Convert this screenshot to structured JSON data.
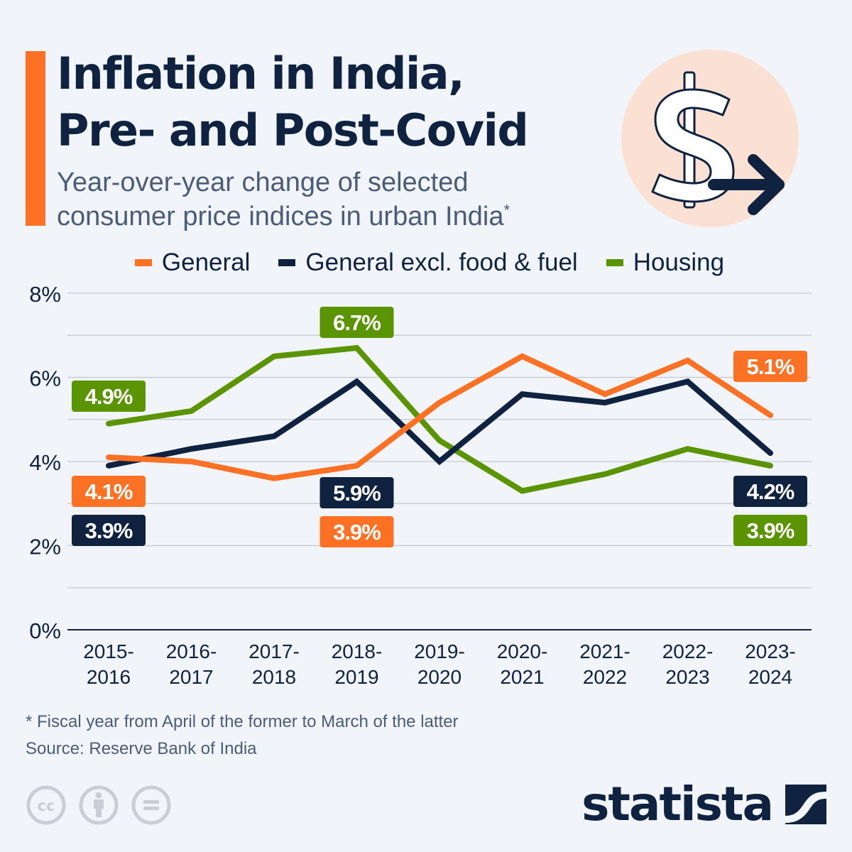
{
  "header": {
    "title_lines": [
      "Inflation in India,",
      "Pre- and Post-Covid"
    ],
    "subtitle_lines": [
      "Year-over-year change of selected",
      "consumer price indices in urban India"
    ],
    "subtitle_marker": "*",
    "icon": "dollar-arrow-icon"
  },
  "colors": {
    "accent": "#fd7125",
    "general": "#fd7125",
    "core": "#0f2341",
    "housing": "#5a9400",
    "background": "#f1f5fa",
    "icon_circle": "#fbe1d4"
  },
  "chart_data": {
    "type": "line",
    "title": "Inflation in India, Pre- and Post-Covid",
    "subtitle": "Year-over-year change of selected consumer price indices in urban India*",
    "xlabel": "",
    "ylabel": "",
    "categories": [
      "2015-2016",
      "2016-2017",
      "2017-2018",
      "2018-2019",
      "2019-2020",
      "2020-2021",
      "2021-2022",
      "2022-2023",
      "2023-2024"
    ],
    "category_labels": [
      [
        "2015-",
        "2016"
      ],
      [
        "2016-",
        "2017"
      ],
      [
        "2017-",
        "2018"
      ],
      [
        "2018-",
        "2019"
      ],
      [
        "2019-",
        "2020"
      ],
      [
        "2020-",
        "2021"
      ],
      [
        "2021-",
        "2022"
      ],
      [
        "2022-",
        "2023"
      ],
      [
        "2023-",
        "2024"
      ]
    ],
    "ylim": [
      0,
      8
    ],
    "yticks": [
      0,
      2,
      4,
      6,
      8
    ],
    "ytick_labels": [
      "0%",
      "2%",
      "4%",
      "6%",
      "8%"
    ],
    "grid": true,
    "grid_step": 1,
    "legend_position": "top-center",
    "series": [
      {
        "name": "General",
        "color": "#fd7125",
        "values": [
          4.1,
          4.0,
          3.6,
          3.9,
          5.4,
          6.5,
          5.6,
          6.4,
          5.1
        ],
        "annotations": [
          {
            "index": 0,
            "label": "4.1%"
          },
          {
            "index": 3,
            "label": "3.9%"
          },
          {
            "index": 8,
            "label": "5.1%"
          }
        ]
      },
      {
        "name": "General excl. food & fuel",
        "color": "#0f2341",
        "values": [
          3.9,
          4.3,
          4.6,
          5.9,
          4.0,
          5.6,
          5.4,
          5.9,
          4.2
        ],
        "annotations": [
          {
            "index": 0,
            "label": "3.9%"
          },
          {
            "index": 3,
            "label": "5.9%"
          },
          {
            "index": 8,
            "label": "4.2%"
          }
        ]
      },
      {
        "name": "Housing",
        "color": "#5a9400",
        "values": [
          4.9,
          5.2,
          6.5,
          6.7,
          4.5,
          3.3,
          3.7,
          4.3,
          3.9
        ],
        "annotations": [
          {
            "index": 0,
            "label": "4.9%"
          },
          {
            "index": 3,
            "label": "6.7%"
          },
          {
            "index": 8,
            "label": "3.9%"
          }
        ]
      }
    ]
  },
  "legend": {
    "items": [
      {
        "label": "General",
        "color": "#fd7125"
      },
      {
        "label": "General excl. food & fuel",
        "color": "#0f2341"
      },
      {
        "label": "Housing",
        "color": "#5a9400"
      }
    ]
  },
  "footer": {
    "footnote": "* Fiscal year from April of the former to March of the latter",
    "source": "Source: Reserve Bank of India",
    "license_icons": [
      "cc-icon",
      "attribution-icon",
      "no-derivatives-icon"
    ],
    "brand": "statista"
  }
}
